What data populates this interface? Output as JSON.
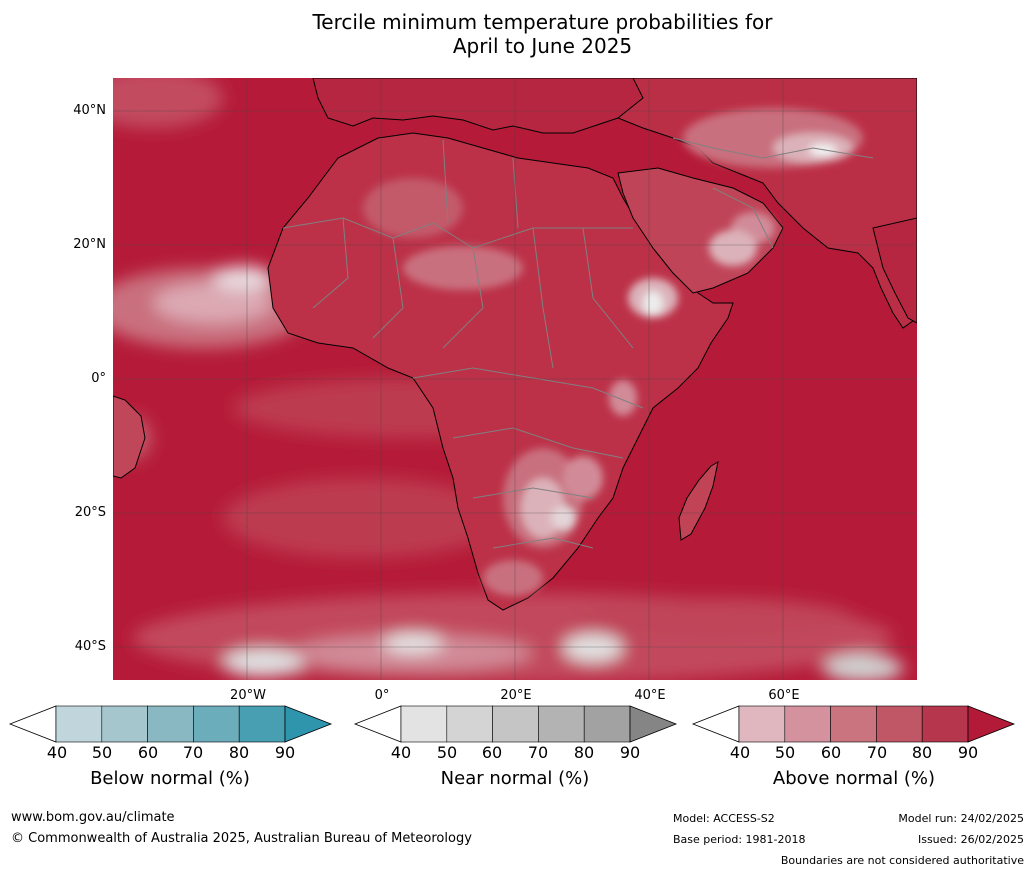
{
  "title_line1": "Tercile minimum temperature probabilities for",
  "title_line2": "April to June 2025",
  "map": {
    "lat_labels": [
      "40°N",
      "20°N",
      "0°",
      "20°S",
      "40°S"
    ],
    "lon_labels": [
      "20°W",
      "0°",
      "20°E",
      "40°E",
      "60°E"
    ],
    "ocean_color": "#b51b38",
    "coast_color": "#000000",
    "border_color": "#808080"
  },
  "colorbars": [
    {
      "label": "Below normal (%)",
      "ticks": [
        "40",
        "50",
        "60",
        "70",
        "80",
        "90"
      ],
      "colors": [
        "#c0d6dc",
        "#a6c6cd",
        "#89b8c2",
        "#6cadbb",
        "#479fb1"
      ],
      "over_color": "#2e95ad"
    },
    {
      "label": "Near normal (%)",
      "ticks": [
        "40",
        "50",
        "60",
        "70",
        "80",
        "90"
      ],
      "colors": [
        "#e3e3e3",
        "#d4d4d4",
        "#c5c5c5",
        "#b3b3b3",
        "#a2a2a2"
      ],
      "over_color": "#858585"
    },
    {
      "label": "Above normal (%)",
      "ticks": [
        "40",
        "50",
        "60",
        "70",
        "80",
        "90"
      ],
      "colors": [
        "#e0b7bf",
        "#d4929e",
        "#ca7480",
        "#bf5766",
        "#b5364d"
      ],
      "over_color": "#b21a38"
    }
  ],
  "footer": {
    "website": "www.bom.gov.au/climate",
    "copyright": "© Commonwealth of Australia 2025, Australian Bureau of Meteorology",
    "model": "Model: ACCESS-S2",
    "base_period": "Base period: 1981-2018",
    "model_run": "Model run: 24/02/2025",
    "issued": "Issued: 26/02/2025",
    "disclaimer": "Boundaries are not considered authoritative"
  }
}
